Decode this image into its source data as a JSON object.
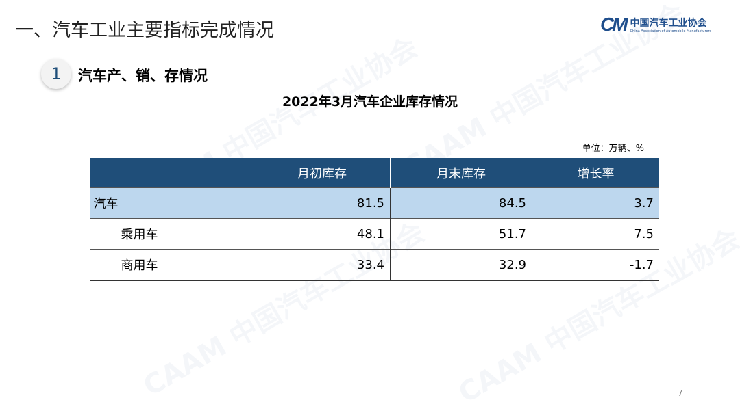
{
  "slide": {
    "title": "一、汽车工业主要指标完成情况",
    "section_number": "1",
    "section_title": "汽车产、销、存情况",
    "page_number": "7"
  },
  "logo": {
    "mark": "CAAM",
    "name_cn": "中国汽车工业协会",
    "name_en": "China Association of Automobile Manufacturers"
  },
  "table": {
    "title": "2022年3月汽车企业库存情况",
    "unit": "单位：万辆、%",
    "headers": [
      "",
      "月初库存",
      "月末库存",
      "增长率"
    ],
    "rows": [
      [
        "汽车",
        "81.5",
        "84.5",
        "3.7"
      ],
      [
        "乘用车",
        "48.1",
        "51.7",
        "7.5"
      ],
      [
        "商用车",
        "33.4",
        "32.9",
        "-1.7"
      ]
    ]
  },
  "colors": {
    "header_bg": "#1f4e79",
    "highlight_row": "#bdd7ee",
    "brand": "#1f4e8c"
  }
}
